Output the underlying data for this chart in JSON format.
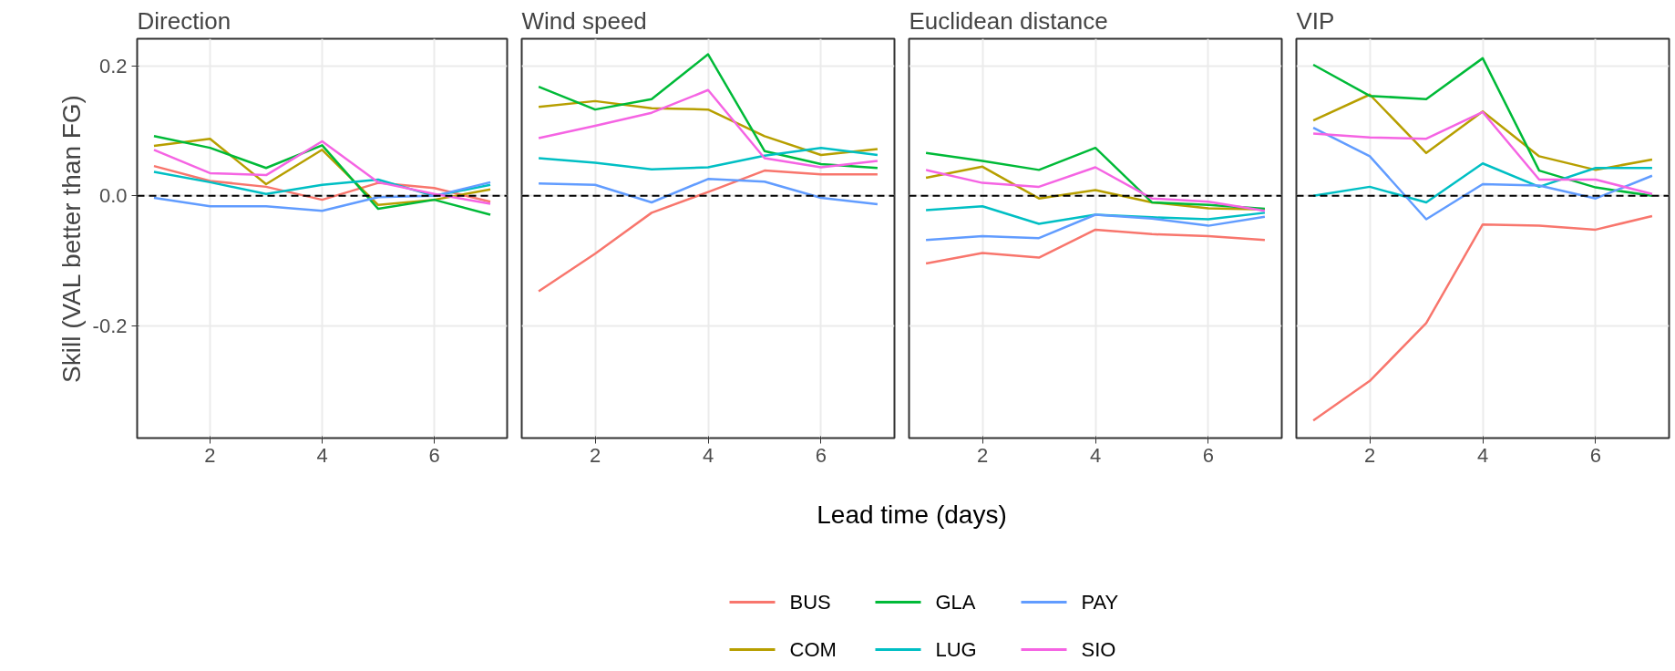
{
  "chart_data": [
    {
      "type": "line",
      "title": "Direction",
      "ylabel": "Skill (VAL better than FG)",
      "x": [
        1,
        2,
        3,
        4,
        5,
        6,
        7
      ],
      "xlim": [
        0.7,
        7.3
      ],
      "xticks": [
        2,
        4,
        6
      ],
      "ylim": [
        -0.373,
        0.242
      ],
      "yticks": [
        -0.2,
        {
          "value": 0,
          "label": "0.0"
        },
        0.2
      ],
      "grid": true,
      "legend": "bottom",
      "ref_lines": [
        {
          "axis": "y",
          "value": 0,
          "line_style": "dashed",
          "color": "#000000"
        }
      ],
      "series": [
        {
          "name": "BUS",
          "color": "#f8766d",
          "values": [
            0.046,
            0.023,
            0.014,
            -0.006,
            0.02,
            0.012,
            -0.009
          ]
        },
        {
          "name": "COM",
          "color": "#b79f00",
          "values": [
            0.077,
            0.088,
            0.018,
            0.071,
            -0.014,
            -0.006,
            0.01
          ]
        },
        {
          "name": "GLA",
          "color": "#00ba38",
          "values": [
            0.092,
            0.074,
            0.043,
            0.078,
            -0.02,
            -0.006,
            -0.029
          ]
        },
        {
          "name": "LUG",
          "color": "#00bfc4",
          "values": [
            0.037,
            0.021,
            0.003,
            0.017,
            0.025,
            0,
            0.017
          ]
        },
        {
          "name": "PAY",
          "color": "#619cff",
          "values": [
            -0.003,
            -0.016,
            -0.016,
            -0.023,
            -0.002,
            0,
            0.021
          ]
        },
        {
          "name": "SIO",
          "color": "#f564e3",
          "values": [
            0.071,
            0.035,
            0.032,
            0.084,
            0.021,
            0.003,
            -0.012
          ]
        }
      ]
    },
    {
      "type": "line",
      "title": "Wind speed",
      "xlabel": "Lead time (days)",
      "x": [
        1,
        2,
        3,
        4,
        5,
        6,
        7
      ],
      "xlim": [
        0.7,
        7.3
      ],
      "xticks": [
        2,
        4,
        6
      ],
      "ylim": [
        -0.373,
        0.242
      ],
      "tick_labels": "x",
      "grid": true,
      "ref_lines": [
        {
          "axis": "y",
          "value": 0,
          "line_style": "dashed",
          "color": "#000000"
        }
      ],
      "series": [
        {
          "color": "#f8766d",
          "values": [
            -0.147,
            -0.089,
            -0.026,
            0.006,
            0.039,
            0.033,
            0.033
          ]
        },
        {
          "color": "#b79f00",
          "values": [
            0.137,
            0.146,
            0.135,
            0.133,
            0.092,
            0.063,
            0.072
          ]
        },
        {
          "color": "#00ba38",
          "values": [
            0.168,
            0.133,
            0.149,
            0.218,
            0.069,
            0.049,
            0.043
          ]
        },
        {
          "color": "#00bfc4",
          "values": [
            0.058,
            0.051,
            0.041,
            0.044,
            0.062,
            0.074,
            0.063
          ]
        },
        {
          "color": "#619cff",
          "values": [
            0.019,
            0.017,
            -0.01,
            0.026,
            0.022,
            -0.003,
            -0.013
          ]
        },
        {
          "color": "#f564e3",
          "values": [
            0.089,
            0.108,
            0.128,
            0.163,
            0.058,
            0.044,
            0.054
          ]
        }
      ]
    },
    {
      "type": "line",
      "title": "Euclidean distance",
      "x": [
        1,
        2,
        3,
        4,
        5,
        6,
        7
      ],
      "xlim": [
        0.7,
        7.3
      ],
      "xticks": [
        2,
        4,
        6
      ],
      "ylim": [
        -0.373,
        0.242
      ],
      "tick_labels": "x",
      "grid": true,
      "ref_lines": [
        {
          "axis": "y",
          "value": 0,
          "line_style": "dashed",
          "color": "#000000"
        }
      ],
      "series": [
        {
          "color": "#f8766d",
          "values": [
            -0.104,
            -0.088,
            -0.095,
            -0.052,
            -0.059,
            -0.062,
            -0.068
          ]
        },
        {
          "color": "#b79f00",
          "values": [
            0.028,
            0.045,
            -0.004,
            0.009,
            -0.01,
            -0.019,
            -0.021
          ]
        },
        {
          "color": "#00ba38",
          "values": [
            0.066,
            0.054,
            0.04,
            0.074,
            -0.01,
            -0.014,
            -0.02
          ]
        },
        {
          "color": "#00bfc4",
          "values": [
            -0.022,
            -0.016,
            -0.043,
            -0.029,
            -0.033,
            -0.036,
            -0.026
          ]
        },
        {
          "color": "#619cff",
          "values": [
            -0.068,
            -0.062,
            -0.065,
            -0.029,
            -0.035,
            -0.046,
            -0.032
          ]
        },
        {
          "color": "#f564e3",
          "values": [
            0.04,
            0.02,
            0.014,
            0.044,
            -0.004,
            -0.009,
            -0.023
          ]
        }
      ]
    },
    {
      "type": "line",
      "title": "VIP",
      "x": [
        1,
        2,
        3,
        4,
        5,
        6,
        7
      ],
      "xlim": [
        0.7,
        7.3
      ],
      "xticks": [
        2,
        4,
        6
      ],
      "ylim": [
        -0.373,
        0.242
      ],
      "tick_labels": "x",
      "grid": true,
      "ref_lines": [
        {
          "axis": "y",
          "value": 0,
          "line_style": "dashed",
          "color": "#000000"
        }
      ],
      "series": [
        {
          "color": "#f8766d",
          "values": [
            -0.346,
            -0.285,
            -0.196,
            -0.044,
            -0.046,
            -0.052,
            -0.031
          ]
        },
        {
          "color": "#b79f00",
          "values": [
            0.116,
            0.156,
            0.066,
            0.13,
            0.061,
            0.04,
            0.056
          ]
        },
        {
          "color": "#00ba38",
          "values": [
            0.202,
            0.154,
            0.149,
            0.212,
            0.039,
            0.013,
            0
          ]
        },
        {
          "color": "#00bfc4",
          "values": [
            0,
            0.014,
            -0.01,
            0.05,
            0.014,
            0.043,
            0.043
          ]
        },
        {
          "color": "#619cff",
          "values": [
            0.105,
            0.061,
            -0.036,
            0.018,
            0.016,
            -0.004,
            0.031
          ]
        },
        {
          "color": "#f564e3",
          "values": [
            0.096,
            0.09,
            0.088,
            0.129,
            0.025,
            0.025,
            0.003
          ]
        }
      ]
    }
  ]
}
